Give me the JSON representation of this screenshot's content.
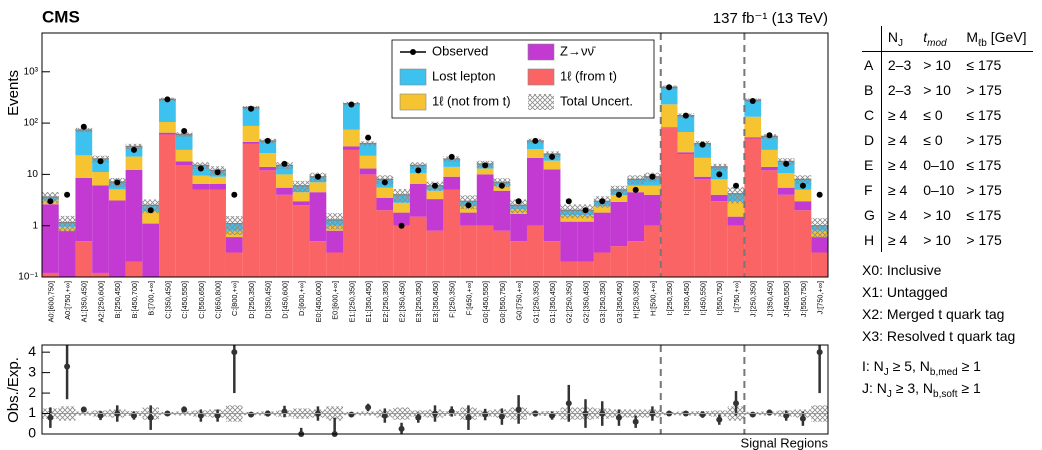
{
  "chart_data": {
    "type": "stacked-bar-log",
    "experiment": "CMS",
    "lumi": "137 fb⁻¹ (13 TeV)",
    "ylabel": "Events",
    "xlabel": "Signal Regions",
    "log_y": true,
    "ylim": [
      0.1,
      5700
    ],
    "yticks": [
      {
        "value": 0.1,
        "label": "10⁻¹"
      },
      1,
      10,
      {
        "value": 100,
        "label": "10²"
      },
      {
        "value": 1000,
        "label": "10³"
      }
    ],
    "categories": [
      "A0:[600,750]",
      "A0:[750,+∞]",
      "A1:[350,450]",
      "A2:[250,600]",
      "B:[250,450]",
      "B:[450,700]",
      "B:[700,+∞]",
      "C:[350,450]",
      "C:[450,550]",
      "C:[550,650]",
      "C:[650,800]",
      "C:[800,+∞]",
      "D:[250,350]",
      "D:[350,450]",
      "D:[450,600]",
      "D:[600,+∞]",
      "E0:[450,600]",
      "E0:[600,+∞]",
      "E1:[250,350]",
      "E1:[350,450]",
      "E2:[250,350]",
      "E2:[350,450]",
      "E3:[250,350]",
      "E3:[350,450]",
      "F:[250,350]",
      "F:[450,+∞]",
      "G0:[450,550]",
      "G0:[550,750]",
      "G0:[750,+∞]",
      "G1:[250,350]",
      "G1:[350,450]",
      "G2:[250,350]",
      "G2:[350,450]",
      "G3:[250,350]",
      "G3:[350,450]",
      "H:[250,350]",
      "H:[500,+∞]",
      "I:[250,350]",
      "I:[350,450]",
      "I:[450,550]",
      "I:[550,750]",
      "I:[750,+∞]",
      "J:[250,350]",
      "J:[350,450]",
      "J:[450,550]",
      "J:[550,750]",
      "J:[750,+∞]"
    ],
    "series": [
      {
        "name": "1ℓ (from t)",
        "color": "#fb6464",
        "values": [
          0.12,
          0.1,
          0.5,
          0.12,
          0.1,
          0.2,
          0.1,
          60,
          15,
          5,
          5,
          0.3,
          40,
          12,
          4,
          2.5,
          0.5,
          0.3,
          30,
          10,
          2,
          1,
          1.5,
          0.8,
          5,
          1,
          1,
          0.8,
          0.5,
          1,
          0.5,
          0.2,
          0.2,
          0.3,
          0.4,
          0.5,
          1,
          80,
          25,
          8,
          3,
          1,
          50,
          12,
          4,
          2,
          0.3
        ]
      },
      {
        "name": "Z→νν̄",
        "color": "#c23ad1",
        "values": [
          2.5,
          0.7,
          8,
          6,
          3,
          12,
          1,
          5,
          3,
          1.5,
          1.5,
          0.3,
          3,
          2,
          1.5,
          0.5,
          4,
          0.5,
          5,
          3,
          1.5,
          0.8,
          5,
          2.5,
          4,
          0.8,
          9,
          4,
          1.2,
          20,
          12,
          1,
          1,
          1.5,
          2.5,
          4,
          3,
          2,
          2,
          1,
          1,
          0.5,
          3,
          2,
          1.5,
          1,
          0.3
        ]
      },
      {
        "name": "1ℓ (not from t)",
        "color": "#f6c431",
        "values": [
          0.5,
          0.15,
          15,
          5,
          2,
          10,
          0.8,
          40,
          12,
          3,
          2.5,
          0.2,
          45,
          12,
          4.5,
          1.5,
          2.5,
          0.2,
          40,
          10,
          2,
          1,
          4,
          1.5,
          5,
          0.6,
          3,
          1.2,
          0.4,
          10,
          6,
          0.4,
          0.4,
          0.6,
          1,
          1.5,
          2,
          150,
          40,
          12,
          4,
          1.5,
          80,
          16,
          5,
          2,
          0.2
        ]
      },
      {
        "name": "Lost lepton",
        "color": "#3dc1ef",
        "values": [
          0.5,
          0.2,
          50,
          9,
          2,
          13,
          0.6,
          185,
          30,
          5.5,
          3,
          0.3,
          112,
          19,
          5,
          1.5,
          2,
          0.3,
          165,
          17,
          2.5,
          1.2,
          4.5,
          1.2,
          6,
          0.6,
          3,
          1,
          0.4,
          14,
          6.5,
          0.4,
          0.4,
          0.6,
          1.1,
          2,
          3,
          268,
          73,
          19,
          6,
          1.2,
          147,
          25,
          7.5,
          3,
          0.2
        ]
      }
    ],
    "observed": {
      "name": "Observed",
      "color": "#000000",
      "values": [
        3,
        4,
        85,
        18,
        7,
        30,
        2,
        290,
        70,
        13,
        11,
        4,
        190,
        45,
        16,
        0,
        9,
        0,
        230,
        52,
        7,
        1,
        12,
        6,
        22,
        2.5,
        15,
        6,
        3,
        45,
        22,
        3,
        2,
        3,
        4,
        5,
        9,
        500,
        140,
        38,
        10,
        6,
        270,
        58,
        16,
        6,
        4
      ]
    },
    "uncertainty": {
      "name": "Total Uncert.",
      "values": [
        0.25,
        0.35,
        0.1,
        0.15,
        0.2,
        0.12,
        0.3,
        0.08,
        0.1,
        0.15,
        0.2,
        0.4,
        0.08,
        0.1,
        0.15,
        0.25,
        0.2,
        0.35,
        0.08,
        0.1,
        0.2,
        0.3,
        0.15,
        0.2,
        0.12,
        0.3,
        0.15,
        0.2,
        0.3,
        0.1,
        0.12,
        0.3,
        0.3,
        0.25,
        0.2,
        0.2,
        0.2,
        0.08,
        0.1,
        0.12,
        0.15,
        0.35,
        0.08,
        0.1,
        0.15,
        0.2,
        0.4
      ]
    },
    "ratio": {
      "ylabel": "Obs./Exp.",
      "ylim": [
        0,
        4.35
      ],
      "yticks": [
        0,
        1,
        2,
        3,
        4
      ],
      "values": [
        0.8,
        3.3,
        1.2,
        0.9,
        1.0,
        0.9,
        0.8,
        1.0,
        1.2,
        0.9,
        0.9,
        4.0,
        0.95,
        1.0,
        1.1,
        0,
        1.0,
        0,
        0.95,
        1.3,
        0.9,
        0.25,
        0.8,
        1.0,
        1.1,
        0.8,
        0.95,
        0.85,
        1.2,
        1.0,
        0.9,
        1.5,
        1.0,
        1.0,
        0.8,
        0.6,
        1.0,
        1.0,
        1.0,
        0.95,
        0.7,
        1.5,
        0.95,
        1.05,
        0.9,
        0.75,
        4.0
      ],
      "errors": [
        0.5,
        1.6,
        0.13,
        0.22,
        0.4,
        0.2,
        0.6,
        0.06,
        0.15,
        0.3,
        0.3,
        2.0,
        0.07,
        0.15,
        0.28,
        0.3,
        0.35,
        0.8,
        0.07,
        0.18,
        0.35,
        0.3,
        0.25,
        0.4,
        0.25,
        0.6,
        0.28,
        0.4,
        0.7,
        0.15,
        0.2,
        0.9,
        0.7,
        0.6,
        0.4,
        0.3,
        0.35,
        0.05,
        0.09,
        0.16,
        0.25,
        0.6,
        0.06,
        0.14,
        0.25,
        0.35,
        2.0
      ]
    }
  },
  "table": {
    "header": [
      [
        {
          "t": "N"
        },
        {
          "sub": "J"
        }
      ],
      [
        {
          "t": "t"
        },
        {
          "sub": "mod"
        }
      ],
      [
        {
          "t": "M"
        },
        {
          "sub": "ℓb"
        },
        {
          "t": " [GeV]"
        }
      ]
    ],
    "rows": [
      [
        "A",
        "2–3",
        "> 10",
        "≤ 175"
      ],
      [
        "B",
        "2–3",
        "> 10",
        "> 175"
      ],
      [
        "C",
        "≥ 4",
        "≤ 0",
        "≤ 175"
      ],
      [
        "D",
        "≥ 4",
        "≤ 0",
        "> 175"
      ],
      [
        "E",
        "≥ 4",
        "0–10",
        "≤ 175"
      ],
      [
        "F",
        "≥ 4",
        "0–10",
        "> 175"
      ],
      [
        "G",
        "≥ 4",
        "> 10",
        "≤ 175"
      ],
      [
        "H",
        "≥ 4",
        "> 10",
        "> 175"
      ]
    ]
  },
  "notes": [
    "X0: Inclusive",
    "X1: Untagged",
    "X2: Merged t quark tag",
    "X3: Resolved t quark tag"
  ],
  "definitions": [
    [
      {
        "t": "I: N"
      },
      {
        "sub": "J"
      },
      {
        "t": " ≥ 5, N"
      },
      {
        "sub": "b,med"
      },
      {
        "t": " ≥ 1"
      }
    ],
    [
      {
        "t": "J: N"
      },
      {
        "sub": "J"
      },
      {
        "t": " ≥ 3, N"
      },
      {
        "sub": "b,soft"
      },
      {
        "t": " ≥ 1"
      }
    ]
  ]
}
